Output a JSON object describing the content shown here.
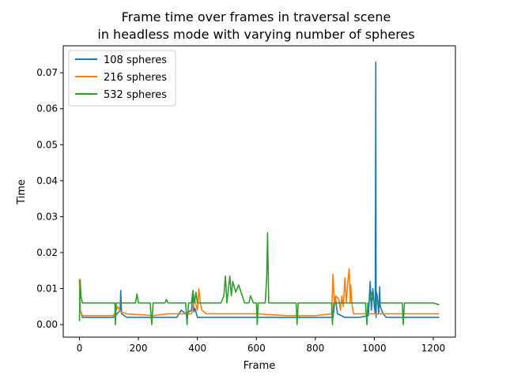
{
  "chart_data": {
    "type": "line",
    "title": [
      "Frame time over frames in traversal scene",
      "in headless mode with varying number of spheres"
    ],
    "xlabel": "Frame",
    "ylabel": "Time",
    "xlim": [
      -55,
      1275
    ],
    "ylim": [
      -0.0035,
      0.0775
    ],
    "xticks": [
      0,
      200,
      400,
      600,
      800,
      1000,
      1200
    ],
    "xtick_labels": [
      "0",
      "200",
      "400",
      "600",
      "800",
      "1000",
      "1200"
    ],
    "yticks": [
      0.0,
      0.01,
      0.02,
      0.03,
      0.04,
      0.05,
      0.06,
      0.07
    ],
    "ytick_labels": [
      "0.00",
      "0.01",
      "0.02",
      "0.03",
      "0.04",
      "0.05",
      "0.06",
      "0.07"
    ],
    "grid": false,
    "legend_position": "top-left",
    "series": [
      {
        "name": "108 spheres",
        "color": "#1f77b4",
        "x": [
          0,
          3,
          10,
          60,
          115,
          128,
          138,
          140,
          143,
          160,
          250,
          330,
          345,
          360,
          380,
          385,
          388,
          392,
          400,
          440,
          500,
          600,
          700,
          800,
          860,
          868,
          875,
          900,
          950,
          980,
          986,
          990,
          995,
          1000,
          1003,
          1005,
          1006,
          1007,
          1010,
          1015,
          1018,
          1020,
          1025,
          1030,
          1040,
          1060,
          1100,
          1150,
          1200,
          1220
        ],
        "y": [
          0.0125,
          0.004,
          0.002,
          0.002,
          0.002,
          0.003,
          0.004,
          0.0095,
          0.003,
          0.002,
          0.002,
          0.002,
          0.004,
          0.003,
          0.004,
          0.009,
          0.0035,
          0.0045,
          0.002,
          0.002,
          0.002,
          0.002,
          0.002,
          0.002,
          0.002,
          0.0075,
          0.003,
          0.002,
          0.002,
          0.0025,
          0.012,
          0.004,
          0.01,
          0.005,
          0.003,
          0.073,
          0.002,
          0.009,
          0.008,
          0.003,
          0.0105,
          0.005,
          0.004,
          0.003,
          0.002,
          0.002,
          0.002,
          0.002,
          0.002,
          0.002
        ]
      },
      {
        "name": "216 spheres",
        "color": "#ff7f0e",
        "x": [
          0,
          3,
          10,
          60,
          115,
          125,
          130,
          140,
          160,
          250,
          300,
          380,
          390,
          400,
          405,
          410,
          415,
          430,
          480,
          500,
          600,
          700,
          800,
          855,
          860,
          865,
          870,
          880,
          885,
          890,
          895,
          900,
          905,
          910,
          915,
          918,
          920,
          925,
          930,
          950,
          1000,
          1050,
          1100,
          1150,
          1200,
          1220
        ],
        "y": [
          0.0125,
          0.004,
          0.0025,
          0.0025,
          0.0025,
          0.004,
          0.005,
          0.0035,
          0.003,
          0.0025,
          0.003,
          0.003,
          0.007,
          0.004,
          0.01,
          0.006,
          0.004,
          0.003,
          0.003,
          0.003,
          0.003,
          0.0025,
          0.0025,
          0.003,
          0.014,
          0.005,
          0.008,
          0.007,
          0.004,
          0.008,
          0.005,
          0.013,
          0.006,
          0.012,
          0.0155,
          0.006,
          0.011,
          0.005,
          0.003,
          0.003,
          0.003,
          0.003,
          0.003,
          0.003,
          0.003,
          0.003
        ]
      },
      {
        "name": "532 spheres",
        "color": "#2ca02c",
        "x": [
          0,
          2,
          5,
          10,
          60,
          110,
          120,
          122,
          125,
          135,
          190,
          195,
          200,
          240,
          245,
          250,
          290,
          295,
          300,
          360,
          365,
          370,
          380,
          385,
          390,
          395,
          400,
          480,
          490,
          495,
          500,
          510,
          515,
          520,
          530,
          540,
          560,
          575,
          580,
          590,
          600,
          603,
          606,
          610,
          630,
          635,
          638,
          642,
          660,
          700,
          735,
          738,
          742,
          800,
          855,
          858,
          862,
          900,
          950,
          970,
          975,
          978,
          982,
          990,
          1000,
          1010,
          1050,
          1095,
          1098,
          1102,
          1150,
          1200,
          1220
        ],
        "y": [
          0.001,
          0.0125,
          0.008,
          0.006,
          0.006,
          0.006,
          0.006,
          0.0,
          0.006,
          0.006,
          0.006,
          0.0085,
          0.006,
          0.006,
          0.0,
          0.006,
          0.006,
          0.007,
          0.006,
          0.006,
          0.0,
          0.006,
          0.006,
          0.0095,
          0.006,
          0.009,
          0.006,
          0.006,
          0.008,
          0.0135,
          0.006,
          0.0135,
          0.008,
          0.012,
          0.009,
          0.011,
          0.006,
          0.006,
          0.008,
          0.006,
          0.006,
          0.0,
          0.006,
          0.006,
          0.006,
          0.013,
          0.0255,
          0.006,
          0.006,
          0.006,
          0.006,
          0.0,
          0.006,
          0.006,
          0.006,
          0.0,
          0.006,
          0.006,
          0.006,
          0.006,
          0.0,
          0.006,
          0.006,
          0.009,
          0.006,
          0.006,
          0.006,
          0.006,
          0.0,
          0.006,
          0.006,
          0.006,
          0.0055
        ]
      }
    ]
  }
}
